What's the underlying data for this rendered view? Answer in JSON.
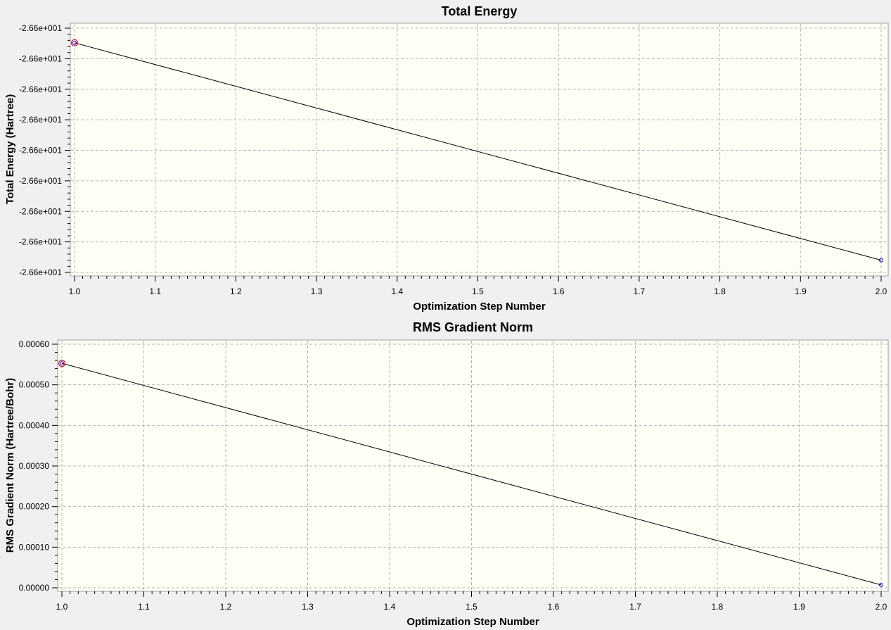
{
  "colors": {
    "background": "#f0f0f0",
    "plot_area": "#fffff5",
    "grid": "#b4b4b4",
    "line": "#000000",
    "marker": "#0000ff",
    "highlight": "#ff0000"
  },
  "chart_data": [
    {
      "type": "line",
      "title": "Total Energy",
      "xlabel": "Optimization Step Number",
      "ylabel": "Total Energy (Hartree)",
      "x": [
        1,
        2
      ],
      "series": [
        {
          "values": [
            -26.6,
            -26.6
          ]
        }
      ],
      "xlim": [
        1.0,
        2.0
      ],
      "xticks": [
        "1.0",
        "1.1",
        "1.2",
        "1.3",
        "1.4",
        "1.5",
        "1.6",
        "1.7",
        "1.8",
        "1.9",
        "2.0"
      ],
      "yticks": [
        "-2.66e+001",
        "-2.66e+001",
        "-2.66e+001",
        "-2.66e+001",
        "-2.66e+001",
        "-2.66e+001",
        "-2.66e+001",
        "-2.66e+001",
        "-2.66e+001"
      ],
      "ylim_note": "all tick labels round to -2.66e+001; first point near the top, last point near the bottom",
      "y_fraction_of_range": [
        0.94,
        0.05
      ],
      "grid": true,
      "highlighted_point": 0
    },
    {
      "type": "line",
      "title": "RMS Gradient Norm",
      "xlabel": "Optimization Step Number",
      "ylabel": "RMS Gradient Norm (Hartree/Bohr)",
      "x": [
        1,
        2
      ],
      "series": [
        {
          "values": [
            0.000553,
            7e-06
          ]
        }
      ],
      "xlim": [
        1.0,
        2.0
      ],
      "ylim": [
        0.0,
        0.0006
      ],
      "xticks": [
        "1.0",
        "1.1",
        "1.2",
        "1.3",
        "1.4",
        "1.5",
        "1.6",
        "1.7",
        "1.8",
        "1.9",
        "2.0"
      ],
      "yticks": [
        "0.00000",
        "0.00010",
        "0.00020",
        "0.00030",
        "0.00040",
        "0.00050",
        "0.00060"
      ],
      "grid": true,
      "highlighted_point": 0
    }
  ]
}
